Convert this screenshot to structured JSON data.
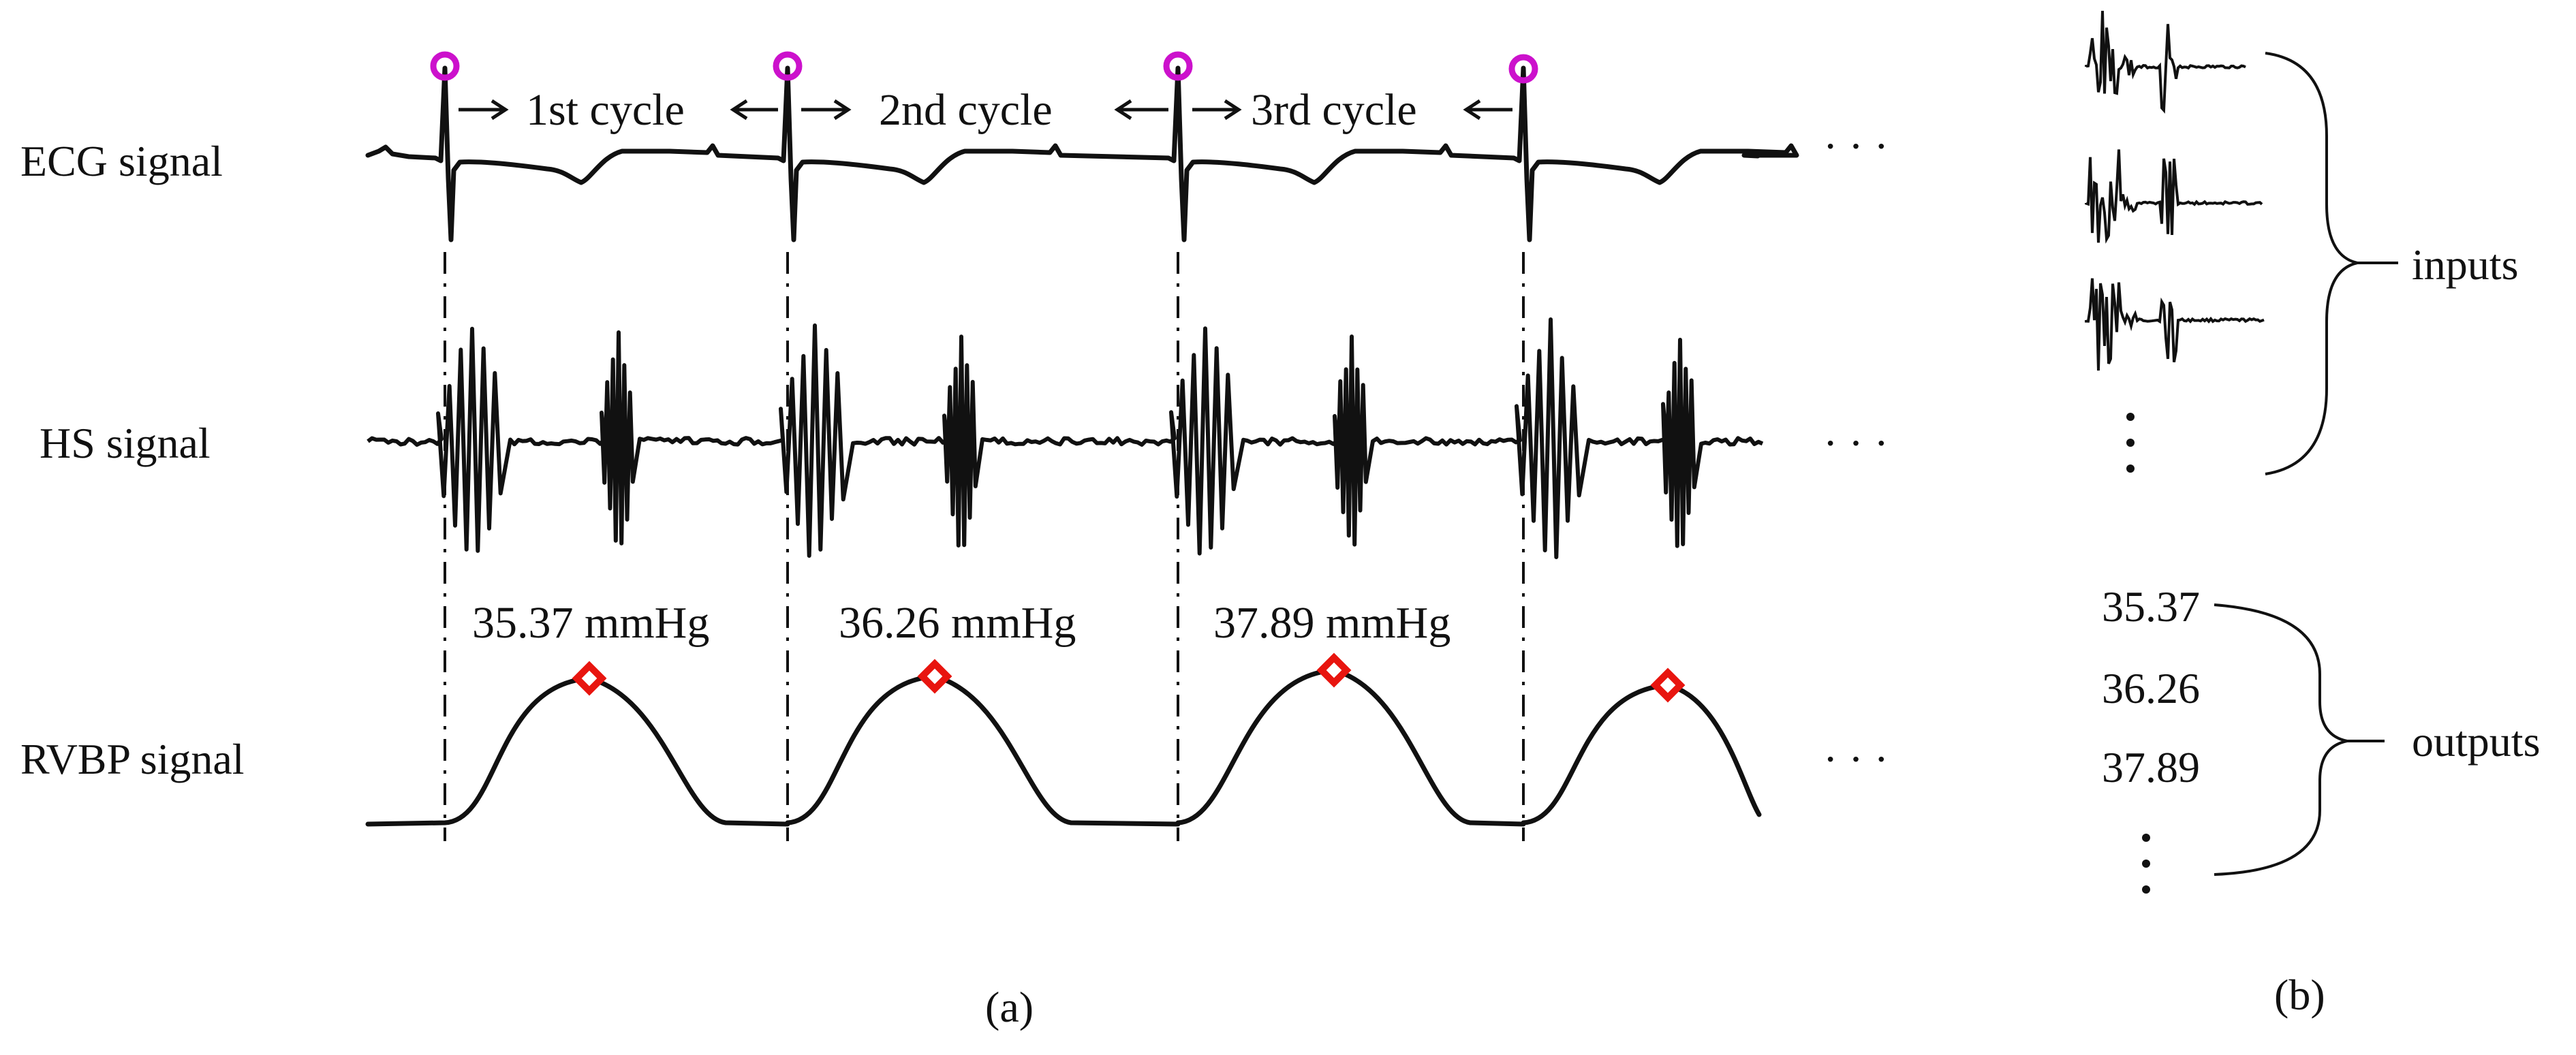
{
  "panel_a": {
    "caption": "(a)",
    "signals": {
      "ecg": "ECG signal",
      "hs": "HS signal",
      "rvbp": "RVBP signal"
    },
    "cycles": [
      "1st cycle",
      "2nd cycle",
      "3rd cycle"
    ],
    "peak_values": [
      "35.37 mmHg",
      "36.26 mmHg",
      "37.89 mmHg"
    ],
    "ellipsis": "· · ·"
  },
  "panel_b": {
    "caption": "(b)",
    "inputs_label": "inputs",
    "outputs_label": "outputs",
    "output_values": [
      "35.37",
      "36.26",
      "37.89"
    ]
  },
  "colors": {
    "trace": "#111111",
    "r_peak_marker": "#cc11cc",
    "bp_peak_marker": "#e8150f"
  }
}
